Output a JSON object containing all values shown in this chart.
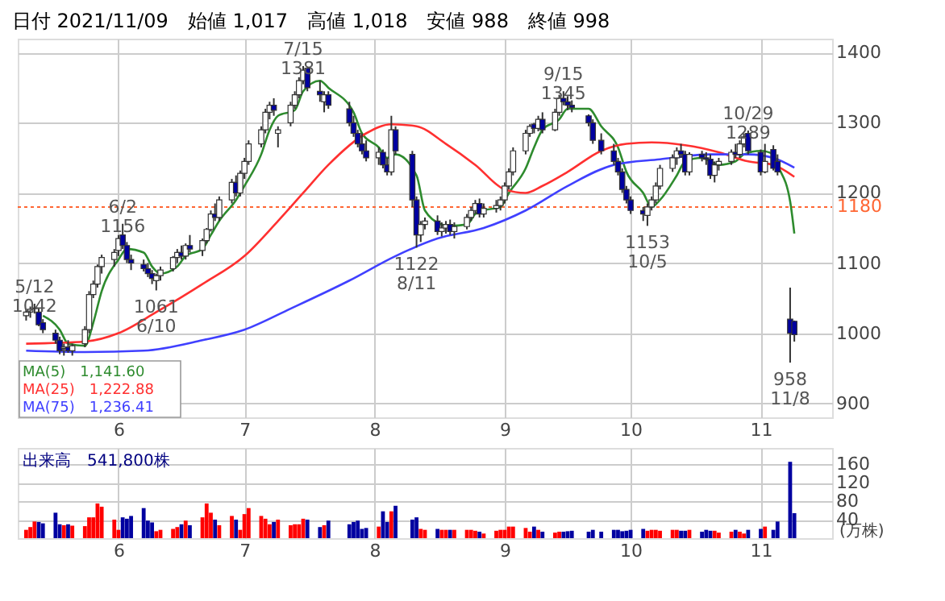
{
  "chart_data": [
    {
      "type": "candlestick",
      "title": "日付 2021/11/09　始値 1,017　高値 1,018　安値 988　終値 998",
      "x": [
        "2021-05-10",
        "2021-05-11",
        "2021-05-12",
        "2021-05-13",
        "2021-05-14",
        "2021-05-17",
        "2021-05-18",
        "2021-05-19",
        "2021-05-20",
        "2021-05-21",
        "2021-05-24",
        "2021-05-25",
        "2021-05-26",
        "2021-05-27",
        "2021-05-28",
        "2021-05-31",
        "2021-06-01",
        "2021-06-02",
        "2021-06-03",
        "2021-06-04",
        "2021-06-07",
        "2021-06-08",
        "2021-06-09",
        "2021-06-10",
        "2021-06-11",
        "2021-06-14",
        "2021-06-15",
        "2021-06-16",
        "2021-06-17",
        "2021-06-18",
        "2021-06-21",
        "2021-06-22",
        "2021-06-23",
        "2021-06-24",
        "2021-06-25",
        "2021-06-28",
        "2021-06-29",
        "2021-06-30",
        "2021-07-01",
        "2021-07-02",
        "2021-07-05",
        "2021-07-06",
        "2021-07-07",
        "2021-07-08",
        "2021-07-09",
        "2021-07-12",
        "2021-07-13",
        "2021-07-14",
        "2021-07-15",
        "2021-07-16",
        "2021-07-19",
        "2021-07-20",
        "2021-07-21",
        "2021-07-26",
        "2021-07-27",
        "2021-07-28",
        "2021-07-29",
        "2021-07-30",
        "2021-08-02",
        "2021-08-03",
        "2021-08-04",
        "2021-08-05",
        "2021-08-06",
        "2021-08-10",
        "2021-08-11",
        "2021-08-12",
        "2021-08-13",
        "2021-08-16",
        "2021-08-17",
        "2021-08-18",
        "2021-08-19",
        "2021-08-20",
        "2021-08-23",
        "2021-08-24",
        "2021-08-25",
        "2021-08-26",
        "2021-08-27",
        "2021-08-30",
        "2021-08-31",
        "2021-09-01",
        "2021-09-02",
        "2021-09-03",
        "2021-09-06",
        "2021-09-07",
        "2021-09-08",
        "2021-09-09",
        "2021-09-10",
        "2021-09-13",
        "2021-09-14",
        "2021-09-15",
        "2021-09-16",
        "2021-09-17",
        "2021-09-21",
        "2021-09-22",
        "2021-09-24",
        "2021-09-27",
        "2021-09-28",
        "2021-09-29",
        "2021-09-30",
        "2021-10-01",
        "2021-10-04",
        "2021-10-05",
        "2021-10-06",
        "2021-10-07",
        "2021-10-08",
        "2021-10-11",
        "2021-10-12",
        "2021-10-13",
        "2021-10-14",
        "2021-10-15",
        "2021-10-18",
        "2021-10-19",
        "2021-10-20",
        "2021-10-21",
        "2021-10-22",
        "2021-10-25",
        "2021-10-26",
        "2021-10-27",
        "2021-10-28",
        "2021-10-29",
        "2021-11-01",
        "2021-11-02",
        "2021-11-04",
        "2021-11-05",
        "2021-11-08",
        "2021-11-09"
      ],
      "ohlc": [
        [
          1025,
          1035,
          1018,
          1030
        ],
        [
          1030,
          1038,
          1022,
          1034
        ],
        [
          1035,
          1042,
          1028,
          1036
        ],
        [
          1030,
          1035,
          1010,
          1012
        ],
        [
          1015,
          1020,
          1000,
          1005
        ],
        [
          1000,
          1005,
          985,
          990
        ],
        [
          990,
          995,
          970,
          975
        ],
        [
          978,
          985,
          968,
          980
        ],
        [
          980,
          990,
          972,
          975
        ],
        [
          975,
          985,
          968,
          982
        ],
        [
          985,
          1010,
          980,
          1005
        ],
        [
          1005,
          1060,
          1000,
          1055
        ],
        [
          1055,
          1075,
          1050,
          1070
        ],
        [
          1070,
          1098,
          1065,
          1095
        ],
        [
          1095,
          1112,
          1085,
          1108
        ],
        [
          1105,
          1120,
          1095,
          1115
        ],
        [
          1118,
          1140,
          1110,
          1135
        ],
        [
          1140,
          1156,
          1120,
          1125
        ],
        [
          1125,
          1130,
          1100,
          1105
        ],
        [
          1105,
          1112,
          1090,
          1100
        ],
        [
          1098,
          1105,
          1088,
          1092
        ],
        [
          1092,
          1100,
          1080,
          1085
        ],
        [
          1085,
          1090,
          1070,
          1078
        ],
        [
          1075,
          1085,
          1061,
          1082
        ],
        [
          1082,
          1095,
          1075,
          1090
        ],
        [
          1092,
          1110,
          1088,
          1108
        ],
        [
          1108,
          1120,
          1100,
          1115
        ],
        [
          1115,
          1125,
          1105,
          1110
        ],
        [
          1110,
          1128,
          1105,
          1125
        ],
        [
          1125,
          1140,
          1115,
          1120
        ],
        [
          1118,
          1135,
          1110,
          1132
        ],
        [
          1132,
          1150,
          1128,
          1148
        ],
        [
          1148,
          1175,
          1145,
          1170
        ],
        [
          1170,
          1185,
          1160,
          1165
        ],
        [
          1165,
          1195,
          1160,
          1190
        ],
        [
          1190,
          1220,
          1185,
          1215
        ],
        [
          1215,
          1225,
          1195,
          1200
        ],
        [
          1200,
          1232,
          1195,
          1228
        ],
        [
          1228,
          1250,
          1220,
          1245
        ],
        [
          1245,
          1275,
          1240,
          1270
        ],
        [
          1270,
          1295,
          1265,
          1290
        ],
        [
          1290,
          1320,
          1285,
          1315
        ],
        [
          1315,
          1330,
          1305,
          1325
        ],
        [
          1325,
          1335,
          1310,
          1318
        ],
        [
          1285,
          1295,
          1265,
          1290
        ],
        [
          1300,
          1330,
          1295,
          1325
        ],
        [
          1325,
          1345,
          1320,
          1340
        ],
        [
          1340,
          1365,
          1335,
          1360
        ],
        [
          1360,
          1381,
          1355,
          1375
        ],
        [
          1378,
          1380,
          1345,
          1350
        ],
        [
          1345,
          1360,
          1330,
          1340
        ],
        [
          1330,
          1345,
          1315,
          1340
        ],
        [
          1340,
          1345,
          1320,
          1325
        ],
        [
          1320,
          1330,
          1295,
          1300
        ],
        [
          1300,
          1310,
          1280,
          1285
        ],
        [
          1285,
          1290,
          1265,
          1270
        ],
        [
          1270,
          1285,
          1255,
          1260
        ],
        [
          1260,
          1275,
          1245,
          1250
        ],
        [
          1250,
          1265,
          1240,
          1258
        ],
        [
          1258,
          1262,
          1235,
          1240
        ],
        [
          1240,
          1250,
          1225,
          1230
        ],
        [
          1230,
          1310,
          1225,
          1290
        ],
        [
          1290,
          1295,
          1255,
          1260
        ],
        [
          1255,
          1260,
          1180,
          1190
        ],
        [
          1190,
          1195,
          1122,
          1140
        ],
        [
          1140,
          1160,
          1130,
          1155
        ],
        [
          1155,
          1165,
          1148,
          1160
        ],
        [
          1160,
          1168,
          1140,
          1145
        ],
        [
          1145,
          1158,
          1138,
          1150
        ],
        [
          1150,
          1160,
          1142,
          1155
        ],
        [
          1155,
          1162,
          1140,
          1145
        ],
        [
          1145,
          1158,
          1135,
          1152
        ],
        [
          1152,
          1170,
          1148,
          1165
        ],
        [
          1165,
          1180,
          1160,
          1175
        ],
        [
          1175,
          1190,
          1170,
          1185
        ],
        [
          1185,
          1192,
          1165,
          1170
        ],
        [
          1170,
          1185,
          1165,
          1178
        ],
        [
          1178,
          1190,
          1172,
          1182
        ],
        [
          1182,
          1195,
          1175,
          1190
        ],
        [
          1190,
          1215,
          1185,
          1210
        ],
        [
          1210,
          1235,
          1205,
          1230
        ],
        [
          1230,
          1265,
          1225,
          1260
        ],
        [
          1260,
          1290,
          1255,
          1285
        ],
        [
          1285,
          1298,
          1280,
          1295
        ],
        [
          1298,
          1300,
          1285,
          1292
        ],
        [
          1292,
          1310,
          1288,
          1305
        ],
        [
          1305,
          1315,
          1285,
          1290
        ],
        [
          1290,
          1320,
          1288,
          1315
        ],
        [
          1315,
          1340,
          1310,
          1335
        ],
        [
          1335,
          1345,
          1325,
          1330
        ],
        [
          1330,
          1338,
          1318,
          1325
        ],
        [
          1325,
          1332,
          1315,
          1322
        ],
        [
          1310,
          1312,
          1295,
          1300
        ],
        [
          1300,
          1305,
          1270,
          1275
        ],
        [
          1275,
          1285,
          1255,
          1260
        ],
        [
          1260,
          1270,
          1240,
          1245
        ],
        [
          1245,
          1250,
          1225,
          1230
        ],
        [
          1230,
          1235,
          1200,
          1205
        ],
        [
          1205,
          1210,
          1185,
          1190
        ],
        [
          1190,
          1195,
          1170,
          1175
        ],
        [
          1175,
          1180,
          1160,
          1170
        ],
        [
          1168,
          1185,
          1153,
          1180
        ],
        [
          1180,
          1195,
          1175,
          1190
        ],
        [
          1190,
          1215,
          1185,
          1210
        ],
        [
          1210,
          1240,
          1205,
          1235
        ],
        [
          1235,
          1255,
          1230,
          1250
        ],
        [
          1250,
          1265,
          1240,
          1260
        ],
        [
          1260,
          1270,
          1250,
          1255
        ],
        [
          1255,
          1260,
          1225,
          1230
        ],
        [
          1230,
          1258,
          1225,
          1255
        ],
        [
          1255,
          1260,
          1245,
          1250
        ],
        [
          1250,
          1258,
          1240,
          1248
        ],
        [
          1248,
          1255,
          1220,
          1225
        ],
        [
          1225,
          1245,
          1215,
          1240
        ],
        [
          1240,
          1250,
          1232,
          1245
        ],
        [
          1245,
          1262,
          1240,
          1258
        ],
        [
          1258,
          1270,
          1250,
          1255
        ],
        [
          1255,
          1275,
          1250,
          1270
        ],
        [
          1270,
          1285,
          1265,
          1280
        ],
        [
          1285,
          1289,
          1255,
          1260
        ],
        [
          1258,
          1262,
          1225,
          1230
        ],
        [
          1230,
          1270,
          1228,
          1245
        ],
        [
          1262,
          1268,
          1232,
          1235
        ],
        [
          1245,
          1255,
          1225,
          1230
        ],
        [
          1020,
          1065,
          958,
          1000
        ],
        [
          1017,
          1018,
          988,
          998
        ]
      ],
      "colors": [
        "#ffffff",
        "#ffffff",
        "#ffffff",
        "#0000a0",
        "#0000a0",
        "#0000a0",
        "#0000a0",
        "#ffffff",
        "#0000a0",
        "#ffffff",
        "#ffffff",
        "#ffffff",
        "#ffffff",
        "#ffffff",
        "#ffffff",
        "#ffffff",
        "#ffffff",
        "#0000a0",
        "#0000a0",
        "#0000a0",
        "#0000a0",
        "#0000a0",
        "#0000a0",
        "#ffffff",
        "#ffffff",
        "#ffffff",
        "#ffffff",
        "#0000a0",
        "#ffffff",
        "#0000a0",
        "#ffffff",
        "#ffffff",
        "#ffffff",
        "#0000a0",
        "#ffffff",
        "#ffffff",
        "#0000a0",
        "#ffffff",
        "#ffffff",
        "#ffffff",
        "#ffffff",
        "#ffffff",
        "#ffffff",
        "#0000a0",
        "#ffffff",
        "#ffffff",
        "#ffffff",
        "#ffffff",
        "#ffffff",
        "#0000a0",
        "#0000a0",
        "#ffffff",
        "#0000a0",
        "#0000a0",
        "#0000a0",
        "#0000a0",
        "#0000a0",
        "#0000a0",
        "#ffffff",
        "#0000a0",
        "#0000a0",
        "#ffffff",
        "#0000a0",
        "#0000a0",
        "#0000a0",
        "#ffffff",
        "#ffffff",
        "#0000a0",
        "#ffffff",
        "#ffffff",
        "#0000a0",
        "#ffffff",
        "#ffffff",
        "#ffffff",
        "#ffffff",
        "#0000a0",
        "#ffffff",
        "#ffffff",
        "#ffffff",
        "#ffffff",
        "#ffffff",
        "#ffffff",
        "#ffffff",
        "#ffffff",
        "#0000a0",
        "#ffffff",
        "#0000a0",
        "#ffffff",
        "#ffffff",
        "#0000a0",
        "#0000a0",
        "#0000a0",
        "#0000a0",
        "#0000a0",
        "#0000a0",
        "#0000a0",
        "#0000a0",
        "#0000a0",
        "#0000a0",
        "#0000a0",
        "#0000a0",
        "#ffffff",
        "#ffffff",
        "#ffffff",
        "#ffffff",
        "#ffffff",
        "#ffffff",
        "#0000a0",
        "#0000a0",
        "#ffffff",
        "#0000a0",
        "#0000a0",
        "#0000a0",
        "#ffffff",
        "#ffffff",
        "#ffffff",
        "#0000a0",
        "#ffffff",
        "#ffffff",
        "#0000a0",
        "#0000a0",
        "#ffffff",
        "#0000a0",
        "#0000a0",
        "#0000a0",
        "#0000a0"
      ],
      "series": [
        {
          "type": "line",
          "name": "MA(5)　1,141.60",
          "color": "#2e8b2e",
          "x": [
            "2021-05-14",
            "2021-05-18",
            "2021-05-20",
            "2021-05-24",
            "2021-05-26",
            "2021-05-28",
            "2021-06-01",
            "2021-06-03",
            "2021-06-07",
            "2021-06-09",
            "2021-06-11",
            "2021-06-15",
            "2021-06-17",
            "2021-06-21",
            "2021-06-23",
            "2021-06-25",
            "2021-06-29",
            "2021-07-01",
            "2021-07-05",
            "2021-07-07",
            "2021-07-09",
            "2021-07-13",
            "2021-07-15",
            "2021-07-19",
            "2021-07-21",
            "2021-07-27",
            "2021-07-29",
            "2021-08-02",
            "2021-08-04",
            "2021-08-06",
            "2021-08-11",
            "2021-08-13",
            "2021-08-17",
            "2021-08-19",
            "2021-08-23",
            "2021-08-25",
            "2021-08-27",
            "2021-08-31",
            "2021-09-02",
            "2021-09-06",
            "2021-09-08",
            "2021-09-10",
            "2021-09-14",
            "2021-09-16",
            "2021-09-21",
            "2021-09-24",
            "2021-09-28",
            "2021-09-30",
            "2021-10-04",
            "2021-10-06",
            "2021-10-08",
            "2021-10-12",
            "2021-10-14",
            "2021-10-18",
            "2021-10-20",
            "2021-10-22",
            "2021-10-26",
            "2021-10-28",
            "2021-11-01",
            "2021-11-04",
            "2021-11-05",
            "2021-11-08",
            "2021-11-09"
          ],
          "values": [
            1025,
            1005,
            985,
            982,
            1015,
            1060,
            1105,
            1120,
            1115,
            1095,
            1085,
            1095,
            1110,
            1120,
            1140,
            1160,
            1190,
            1210,
            1255,
            1290,
            1310,
            1318,
            1345,
            1360,
            1350,
            1315,
            1285,
            1265,
            1250,
            1255,
            1225,
            1175,
            1155,
            1153,
            1155,
            1170,
            1175,
            1180,
            1200,
            1235,
            1265,
            1290,
            1305,
            1320,
            1320,
            1295,
            1265,
            1230,
            1200,
            1180,
            1190,
            1225,
            1245,
            1250,
            1245,
            1240,
            1245,
            1255,
            1260,
            1255,
            1240,
            1188,
            1142
          ]
        },
        {
          "type": "line",
          "name": "MA(25)　1,222.88",
          "color": "#ff3030",
          "x": [
            "2021-05-10",
            "2021-05-24",
            "2021-06-01",
            "2021-06-10",
            "2021-06-21",
            "2021-07-01",
            "2021-07-09",
            "2021-07-15",
            "2021-07-21",
            "2021-07-30",
            "2021-08-05",
            "2021-08-11",
            "2021-08-18",
            "2021-08-25",
            "2021-09-01",
            "2021-09-06",
            "2021-09-10",
            "2021-09-16",
            "2021-09-24",
            "2021-09-30",
            "2021-10-06",
            "2021-10-14",
            "2021-10-22",
            "2021-10-29",
            "2021-11-04",
            "2021-11-09"
          ],
          "values": [
            985,
            988,
            1000,
            1030,
            1070,
            1110,
            1160,
            1200,
            1240,
            1285,
            1298,
            1295,
            1270,
            1240,
            1205,
            1200,
            1210,
            1230,
            1260,
            1270,
            1272,
            1268,
            1258,
            1245,
            1240,
            1223
          ]
        },
        {
          "type": "line",
          "name": "MA(75)　1,236.41",
          "color": "#4040ff",
          "x": [
            "2021-05-10",
            "2021-05-24",
            "2021-06-07",
            "2021-06-21",
            "2021-07-01",
            "2021-07-12",
            "2021-07-26",
            "2021-08-06",
            "2021-08-16",
            "2021-08-27",
            "2021-09-06",
            "2021-09-16",
            "2021-09-27",
            "2021-10-08",
            "2021-10-20",
            "2021-10-29",
            "2021-11-04",
            "2021-11-09"
          ],
          "values": [
            975,
            973,
            975,
            990,
            1005,
            1035,
            1075,
            1110,
            1135,
            1150,
            1175,
            1210,
            1240,
            1248,
            1255,
            1255,
            1250,
            1236
          ]
        }
      ],
      "annotations": [
        {
          "text": "5/12\n1042",
          "x": "2021-05-12",
          "y": 1042
        },
        {
          "text": "6/2\n1156",
          "x": "2021-06-02",
          "y": 1156
        },
        {
          "text": "1061\n6/10",
          "x": "2021-06-10",
          "y": 1061
        },
        {
          "text": "7/15\n1381",
          "x": "2021-07-15",
          "y": 1381
        },
        {
          "text": "1122\n8/11",
          "x": "2021-08-11",
          "y": 1122
        },
        {
          "text": "9/15\n1345",
          "x": "2021-09-15",
          "y": 1345
        },
        {
          "text": "1153\n10/5",
          "x": "2021-10-05",
          "y": 1153
        },
        {
          "text": "10/29\n1289",
          "x": "2021-10-29",
          "y": 1289
        },
        {
          "text": "958\n11/8",
          "x": "2021-11-08",
          "y": 958
        }
      ],
      "ref_lines": [
        {
          "axis": "y",
          "value": 1180,
          "label": "1180",
          "color": "#ff6633",
          "line_style": "dotted"
        }
      ],
      "xlim": [
        "2021-05-08",
        "2021-11-18"
      ],
      "xticks": [
        {
          "value": "2021-06-01",
          "label": "6"
        },
        {
          "value": "2021-07-01",
          "label": "7"
        },
        {
          "value": "2021-08-01",
          "label": "8"
        },
        {
          "value": "2021-09-01",
          "label": "9"
        },
        {
          "value": "2021-10-01",
          "label": "10"
        },
        {
          "value": "2021-11-01",
          "label": "11"
        }
      ],
      "ylim": [
        880,
        1420
      ],
      "yticks": [
        900,
        1000,
        1100,
        1200,
        1300,
        1400
      ],
      "grid": true,
      "legend": "bottom left"
    },
    {
      "type": "bar",
      "ylabel": "(万株)",
      "annotations": [
        "出来高　541,800株"
      ],
      "x": [
        "2021-05-10",
        "2021-05-11",
        "2021-05-12",
        "2021-05-13",
        "2021-05-14",
        "2021-05-17",
        "2021-05-18",
        "2021-05-19",
        "2021-05-20",
        "2021-05-21",
        "2021-05-24",
        "2021-05-25",
        "2021-05-26",
        "2021-05-27",
        "2021-05-28",
        "2021-05-31",
        "2021-06-01",
        "2021-06-02",
        "2021-06-03",
        "2021-06-04",
        "2021-06-07",
        "2021-06-08",
        "2021-06-09",
        "2021-06-10",
        "2021-06-11",
        "2021-06-14",
        "2021-06-15",
        "2021-06-16",
        "2021-06-17",
        "2021-06-18",
        "2021-06-21",
        "2021-06-22",
        "2021-06-23",
        "2021-06-24",
        "2021-06-25",
        "2021-06-28",
        "2021-06-29",
        "2021-06-30",
        "2021-07-01",
        "2021-07-02",
        "2021-07-05",
        "2021-07-06",
        "2021-07-07",
        "2021-07-08",
        "2021-07-09",
        "2021-07-12",
        "2021-07-13",
        "2021-07-14",
        "2021-07-15",
        "2021-07-16",
        "2021-07-19",
        "2021-07-20",
        "2021-07-21",
        "2021-07-26",
        "2021-07-27",
        "2021-07-28",
        "2021-07-29",
        "2021-07-30",
        "2021-08-02",
        "2021-08-03",
        "2021-08-04",
        "2021-08-05",
        "2021-08-06",
        "2021-08-10",
        "2021-08-11",
        "2021-08-12",
        "2021-08-13",
        "2021-08-16",
        "2021-08-17",
        "2021-08-18",
        "2021-08-19",
        "2021-08-20",
        "2021-08-23",
        "2021-08-24",
        "2021-08-25",
        "2021-08-26",
        "2021-08-27",
        "2021-08-30",
        "2021-08-31",
        "2021-09-01",
        "2021-09-02",
        "2021-09-03",
        "2021-09-06",
        "2021-09-07",
        "2021-09-08",
        "2021-09-09",
        "2021-09-10",
        "2021-09-13",
        "2021-09-14",
        "2021-09-15",
        "2021-09-16",
        "2021-09-17",
        "2021-09-21",
        "2021-09-22",
        "2021-09-24",
        "2021-09-27",
        "2021-09-28",
        "2021-09-29",
        "2021-09-30",
        "2021-10-01",
        "2021-10-04",
        "2021-10-05",
        "2021-10-06",
        "2021-10-07",
        "2021-10-08",
        "2021-10-11",
        "2021-10-12",
        "2021-10-13",
        "2021-10-14",
        "2021-10-15",
        "2021-10-18",
        "2021-10-19",
        "2021-10-20",
        "2021-10-21",
        "2021-10-22",
        "2021-10-25",
        "2021-10-26",
        "2021-10-27",
        "2021-10-28",
        "2021-10-29",
        "2021-11-01",
        "2021-11-02",
        "2021-11-04",
        "2021-11-05",
        "2021-11-08",
        "2021-11-09"
      ],
      "values": [
        18,
        24,
        36,
        35,
        32,
        55,
        30,
        28,
        30,
        27,
        26,
        45,
        45,
        75,
        68,
        40,
        18,
        45,
        42,
        48,
        65,
        38,
        34,
        15,
        18,
        20,
        24,
        30,
        38,
        28,
        45,
        75,
        55,
        40,
        28,
        48,
        40,
        18,
        52,
        65,
        48,
        42,
        30,
        35,
        40,
        28,
        30,
        30,
        42,
        40,
        24,
        28,
        38,
        30,
        35,
        38,
        20,
        22,
        25,
        58,
        35,
        58,
        70,
        40,
        45,
        20,
        18,
        20,
        18,
        18,
        18,
        18,
        18,
        18,
        16,
        14,
        10,
        16,
        18,
        18,
        25,
        25,
        22,
        14,
        25,
        18,
        14,
        12,
        14,
        14,
        15,
        16,
        14,
        18,
        14,
        18,
        18,
        15,
        16,
        18,
        20,
        16,
        18,
        18,
        16,
        18,
        18,
        16,
        16,
        18,
        14,
        18,
        16,
        16,
        12,
        14,
        18,
        14,
        10,
        18,
        20,
        25,
        18,
        36,
        165,
        54
      ],
      "colors": [
        "#ff0000",
        "#ff0000",
        "#ff0000",
        "#0000a0",
        "#0000a0",
        "#0000a0",
        "#0000a0",
        "#ff0000",
        "#0000a0",
        "#ff0000",
        "#ff0000",
        "#ff0000",
        "#ff0000",
        "#ff0000",
        "#ff0000",
        "#ff0000",
        "#ff0000",
        "#0000a0",
        "#0000a0",
        "#0000a0",
        "#0000a0",
        "#0000a0",
        "#0000a0",
        "#ff0000",
        "#ff0000",
        "#ff0000",
        "#ff0000",
        "#0000a0",
        "#ff0000",
        "#0000a0",
        "#ff0000",
        "#ff0000",
        "#ff0000",
        "#0000a0",
        "#ff0000",
        "#ff0000",
        "#0000a0",
        "#ff0000",
        "#ff0000",
        "#ff0000",
        "#ff0000",
        "#ff0000",
        "#ff0000",
        "#0000a0",
        "#ff0000",
        "#ff0000",
        "#ff0000",
        "#ff0000",
        "#ff0000",
        "#0000a0",
        "#0000a0",
        "#ff0000",
        "#0000a0",
        "#0000a0",
        "#0000a0",
        "#0000a0",
        "#0000a0",
        "#0000a0",
        "#ff0000",
        "#0000a0",
        "#0000a0",
        "#ff0000",
        "#0000a0",
        "#0000a0",
        "#0000a0",
        "#ff0000",
        "#ff0000",
        "#0000a0",
        "#ff0000",
        "#ff0000",
        "#0000a0",
        "#ff0000",
        "#ff0000",
        "#ff0000",
        "#ff0000",
        "#0000a0",
        "#ff0000",
        "#ff0000",
        "#ff0000",
        "#ff0000",
        "#ff0000",
        "#ff0000",
        "#ff0000",
        "#ff0000",
        "#0000a0",
        "#ff0000",
        "#0000a0",
        "#ff0000",
        "#ff0000",
        "#0000a0",
        "#0000a0",
        "#0000a0",
        "#0000a0",
        "#0000a0",
        "#0000a0",
        "#0000a0",
        "#0000a0",
        "#0000a0",
        "#0000a0",
        "#0000a0",
        "#0000a0",
        "#ff0000",
        "#ff0000",
        "#ff0000",
        "#ff0000",
        "#ff0000",
        "#ff0000",
        "#0000a0",
        "#0000a0",
        "#ff0000",
        "#0000a0",
        "#0000a0",
        "#0000a0",
        "#ff0000",
        "#ff0000",
        "#ff0000",
        "#0000a0",
        "#ff0000",
        "#ff0000",
        "#0000a0",
        "#0000a0",
        "#ff0000",
        "#0000a0",
        "#0000a0",
        "#0000a0",
        "#0000a0"
      ],
      "xlim": [
        "2021-05-08",
        "2021-11-18"
      ],
      "xticks": [
        {
          "value": "2021-06-01",
          "label": "6"
        },
        {
          "value": "2021-07-01",
          "label": "7"
        },
        {
          "value": "2021-08-01",
          "label": "8"
        },
        {
          "value": "2021-09-01",
          "label": "9"
        },
        {
          "value": "2021-10-01",
          "label": "10"
        },
        {
          "value": "2021-11-01",
          "label": "11"
        }
      ],
      "ylim": [
        0,
        195
      ],
      "yticks": [
        40,
        80,
        120,
        160
      ],
      "grid": true
    }
  ]
}
